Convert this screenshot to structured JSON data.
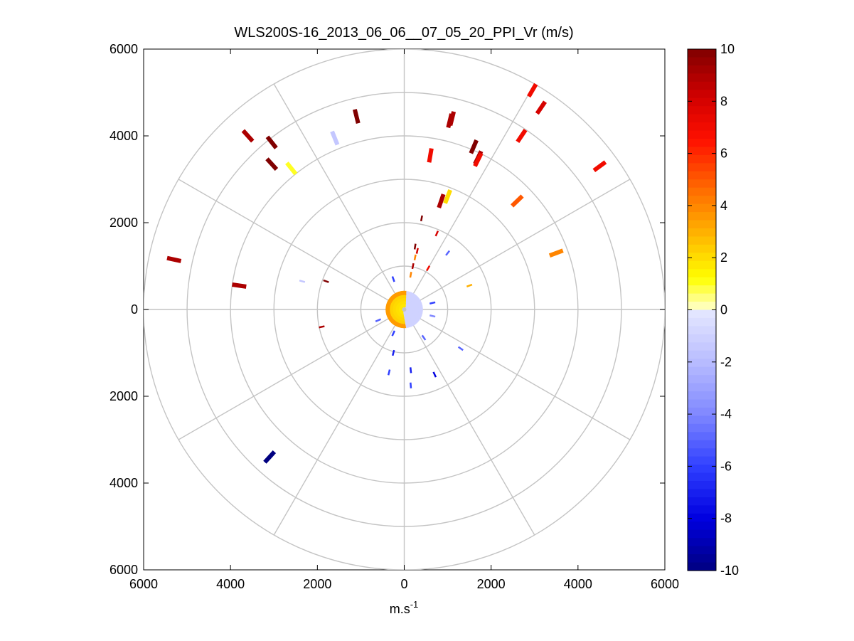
{
  "chart_data": {
    "type": "scatter",
    "title": "WLS200S-16_2013_06_06__07_05_20_PPI_Vr (m/s)",
    "xlabel_base": "m.s",
    "xlabel_exp": "-1",
    "x_ticks": [
      "6000",
      "4000",
      "2000",
      "0",
      "2000",
      "4000",
      "6000"
    ],
    "y_ticks": [
      "6000",
      "4000",
      "2000",
      "0",
      "2000",
      "4000",
      "6000"
    ],
    "xlim": [
      -6000,
      6000
    ],
    "ylim": [
      -6000,
      6000
    ],
    "polar_grid": {
      "range_rings": [
        1000,
        2000,
        3000,
        4000,
        5000,
        6000
      ],
      "spoke_angles_deg": [
        0,
        30,
        60,
        90,
        120,
        150,
        180,
        210,
        240,
        270,
        300,
        330
      ]
    },
    "colorbar": {
      "min": -10,
      "max": 10,
      "ticks": [
        "10",
        "8",
        "6",
        "4",
        "2",
        "0",
        "-2",
        "-4",
        "-6",
        "-8",
        "-10"
      ]
    },
    "points": [
      {
        "x": 2950,
        "y": 5050,
        "v": 7
      },
      {
        "x": 3150,
        "y": 4650,
        "v": 8
      },
      {
        "x": 2700,
        "y": 4000,
        "v": 7
      },
      {
        "x": 1050,
        "y": 4350,
        "v": 9
      },
      {
        "x": 1600,
        "y": 3750,
        "v": 10
      },
      {
        "x": 1700,
        "y": 3500,
        "v": 9
      },
      {
        "x": 600,
        "y": 3550,
        "v": 7
      },
      {
        "x": 1700,
        "y": 3450,
        "v": 7
      },
      {
        "x": 4500,
        "y": 3300,
        "v": 7
      },
      {
        "x": 1000,
        "y": 2600,
        "v": 2
      },
      {
        "x": 850,
        "y": 2500,
        "v": 9
      },
      {
        "x": 2600,
        "y": 2500,
        "v": 5
      },
      {
        "x": 400,
        "y": 2100,
        "v": 10
      },
      {
        "x": 750,
        "y": 1750,
        "v": 8
      },
      {
        "x": 3500,
        "y": 1300,
        "v": 4
      },
      {
        "x": 1100,
        "y": 4400,
        "v": 9
      },
      {
        "x": -1100,
        "y": 4450,
        "v": 10
      },
      {
        "x": -1600,
        "y": 3950,
        "v": -1.5
      },
      {
        "x": -3600,
        "y": 4000,
        "v": 9
      },
      {
        "x": -3050,
        "y": 3850,
        "v": 10
      },
      {
        "x": -3050,
        "y": 3350,
        "v": 10
      },
      {
        "x": -2600,
        "y": 3250,
        "v": 1
      },
      {
        "x": -5300,
        "y": 1150,
        "v": 9
      },
      {
        "x": -3800,
        "y": 550,
        "v": 9
      },
      {
        "x": -2350,
        "y": 650,
        "v": -1.5
      },
      {
        "x": -1800,
        "y": 650,
        "v": 10
      },
      {
        "x": -1900,
        "y": -400,
        "v": 9
      },
      {
        "x": 1500,
        "y": 550,
        "v": 3
      },
      {
        "x": 1000,
        "y": 1300,
        "v": -5
      },
      {
        "x": 250,
        "y": 1450,
        "v": 10
      },
      {
        "x": 300,
        "y": 1350,
        "v": 8
      },
      {
        "x": 250,
        "y": 1200,
        "v": 4
      },
      {
        "x": 200,
        "y": 1000,
        "v": 9
      },
      {
        "x": -250,
        "y": 700,
        "v": -6
      },
      {
        "x": 150,
        "y": 800,
        "v": 4
      },
      {
        "x": 550,
        "y": 950,
        "v": 7
      },
      {
        "x": -600,
        "y": -250,
        "v": -5
      },
      {
        "x": -250,
        "y": -550,
        "v": -6
      },
      {
        "x": 450,
        "y": -650,
        "v": -5
      },
      {
        "x": 650,
        "y": 150,
        "v": -6
      },
      {
        "x": 1300,
        "y": -900,
        "v": -5
      },
      {
        "x": -250,
        "y": -1000,
        "v": -7
      },
      {
        "x": -350,
        "y": -1450,
        "v": -6
      },
      {
        "x": 150,
        "y": -1400,
        "v": -7
      },
      {
        "x": 150,
        "y": -1750,
        "v": -6
      },
      {
        "x": 700,
        "y": -1500,
        "v": -8
      },
      {
        "x": -3100,
        "y": -3400,
        "v": -10
      },
      {
        "x": 650,
        "y": -150,
        "v": -4
      }
    ],
    "near_field": {
      "ring_min": 100,
      "ring_max": 420,
      "east_sector_v": -1,
      "west_sector_v": 1.5
    }
  }
}
